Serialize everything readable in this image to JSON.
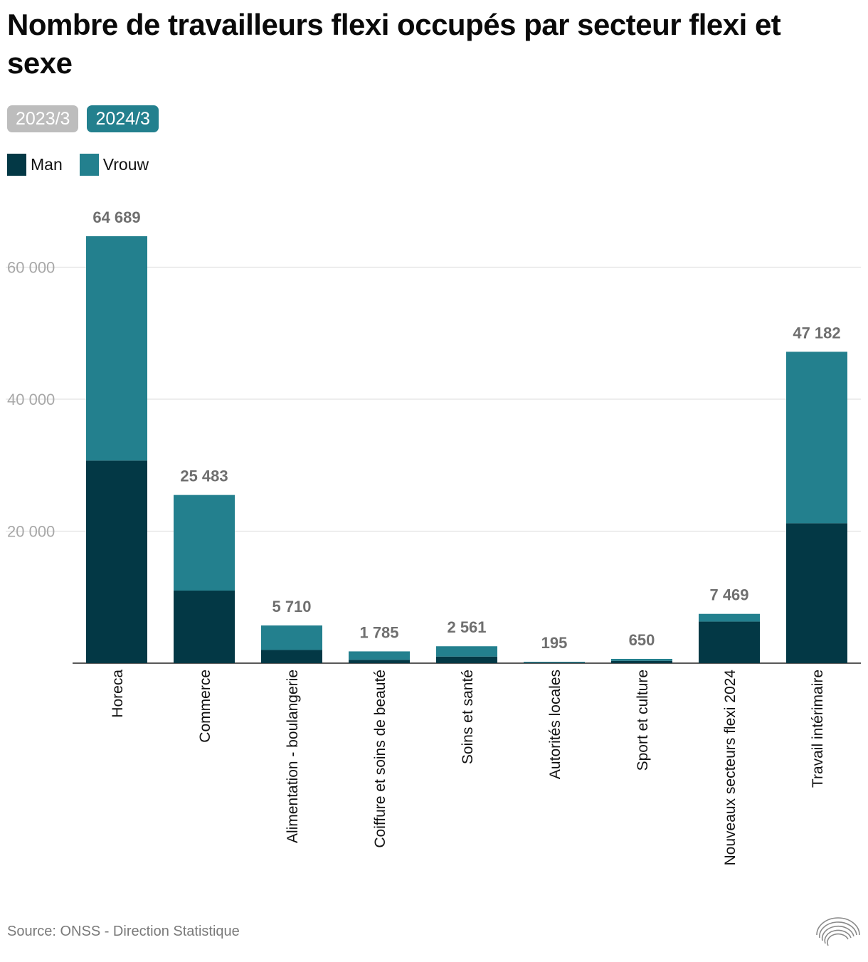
{
  "title": "Nombre de travailleurs flexi occupés par secteur flexi et sexe",
  "tabs": [
    {
      "label": "2023/3",
      "active": false
    },
    {
      "label": "2024/3",
      "active": true
    }
  ],
  "legend": [
    {
      "label": "Man",
      "color": "#033845"
    },
    {
      "label": "Vrouw",
      "color": "#23808e"
    }
  ],
  "source": "Source: ONSS - Direction Statistique",
  "logo_icon": "concentric-arcs-logo",
  "chart_data": {
    "type": "bar",
    "stacked": true,
    "categories": [
      "Horeca",
      "Commerce",
      "Alimentation - boulangerie",
      "Coiffure et soins de beauté",
      "Soins et santé",
      "Autorités locales",
      "Sport et culture",
      "Nouveaux secteurs flexi 2024",
      "Travail intérimaire"
    ],
    "series": [
      {
        "name": "Man",
        "color": "#033845",
        "values": [
          30700,
          11000,
          2000,
          500,
          1000,
          100,
          350,
          6300,
          21200
        ]
      },
      {
        "name": "Vrouw",
        "color": "#23808e",
        "values": [
          33989,
          14483,
          3710,
          1285,
          1561,
          95,
          300,
          1169,
          25982
        ]
      }
    ],
    "totals": [
      64689,
      25483,
      5710,
      1785,
      2561,
      195,
      650,
      7469,
      47182
    ],
    "total_labels": [
      "64 689",
      "25 483",
      "5 710",
      "1 785",
      "2 561",
      "195",
      "650",
      "7 469",
      "47 182"
    ],
    "yticks": [
      20000,
      40000,
      60000
    ],
    "ytick_labels": [
      "20 000",
      "40 000",
      "60 000"
    ],
    "ylim": [
      0,
      70000
    ],
    "xlabel": "",
    "ylabel": "",
    "grid": true
  }
}
